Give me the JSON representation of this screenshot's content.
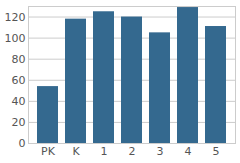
{
  "chart_data": {
    "type": "bar",
    "categories": [
      "PK",
      "K",
      "1",
      "2",
      "3",
      "4",
      "5"
    ],
    "values": [
      54,
      118,
      125,
      120,
      105,
      129,
      111
    ],
    "color": "#34698f",
    "ylim": [
      0,
      130
    ],
    "yticks": [
      0,
      20,
      40,
      60,
      80,
      100,
      120
    ],
    "grid": true
  }
}
